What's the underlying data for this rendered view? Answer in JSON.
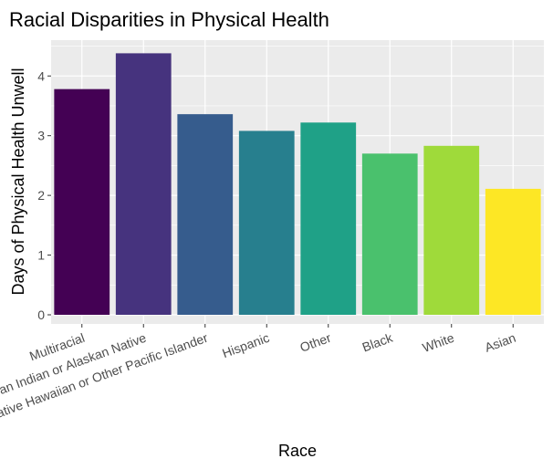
{
  "chart_data": {
    "type": "bar",
    "title": "Racial Disparities in Physical Health",
    "xlabel": "Race",
    "ylabel": "Days of Physical Health Unwell",
    "categories": [
      "Multiracial",
      "American Indian or Alaskan Native",
      "Native Hawaiian or Other Pacific Islander",
      "Hispanic",
      "Other",
      "Black",
      "White",
      "Asian"
    ],
    "values": [
      3.78,
      4.38,
      3.36,
      3.08,
      3.22,
      2.7,
      2.83,
      2.11
    ],
    "colors": [
      "#440154",
      "#46337E",
      "#365C8D",
      "#277F8E",
      "#1FA187",
      "#4AC16D",
      "#9FDA3A",
      "#FDE725"
    ],
    "ylim": [
      0,
      4.6
    ],
    "yticks": [
      0,
      1,
      2,
      3,
      4
    ],
    "grid": true,
    "panel_background": "#EBEBEB",
    "grid_color": "#FFFFFF"
  }
}
